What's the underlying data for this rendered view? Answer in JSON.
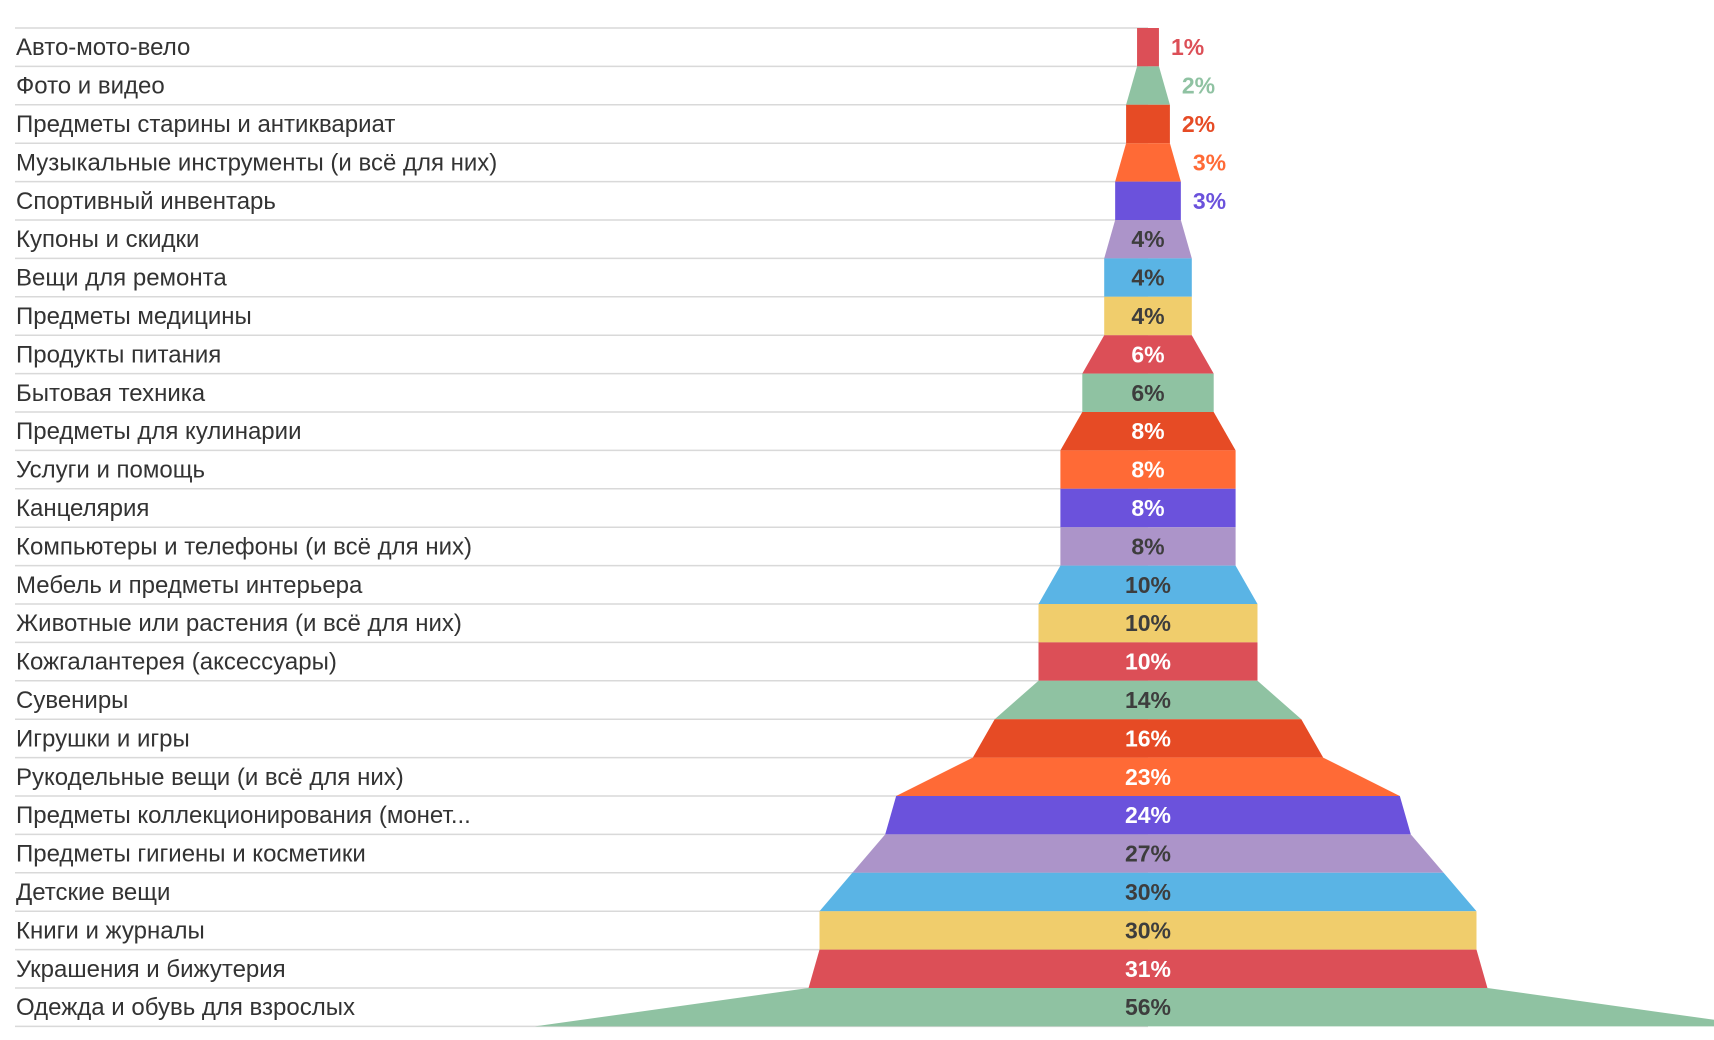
{
  "chart_data": {
    "type": "bar",
    "variant": "funnel",
    "title": "",
    "xlabel": "",
    "ylabel": "",
    "categories": [
      "Авто-мото-вело",
      "Фото и видео",
      "Предметы старины и антиквариат",
      "Музыкальные инструменты (и всё для них)",
      "Спортивный инвентарь",
      "Купоны и скидки",
      "Вещи для ремонта",
      "Предметы медицины",
      "Продукты питания",
      "Бытовая техника",
      "Предметы для кулинарии",
      "Услуги и помощь",
      "Канцелярия",
      "Компьютеры и телефоны (и всё для них)",
      "Мебель и предметы интерьера",
      "Животные или растения (и всё для них)",
      "Кожгалантерея (аксессуары)",
      "Сувениры",
      "Игрушки и игры",
      "Рукодельные вещи (и всё для них)",
      "Предметы коллекционирования (монет...",
      "Предметы гигиены и косметики",
      "Детские вещи",
      "Книги и журналы",
      "Украшения и бижутерия",
      "Одежда и обувь для взрослых"
    ],
    "values": [
      1,
      2,
      2,
      3,
      3,
      4,
      4,
      4,
      6,
      6,
      8,
      8,
      8,
      8,
      10,
      10,
      10,
      14,
      16,
      23,
      24,
      27,
      30,
      30,
      31,
      56
    ],
    "value_labels": [
      "1%",
      "2%",
      "2%",
      "3%",
      "3%",
      "4%",
      "4%",
      "4%",
      "6%",
      "6%",
      "8%",
      "8%",
      "8%",
      "8%",
      "10%",
      "10%",
      "10%",
      "14%",
      "16%",
      "23%",
      "24%",
      "27%",
      "30%",
      "30%",
      "31%",
      "56%"
    ],
    "colors": [
      "#dc4f57",
      "#8fc2a2",
      "#e64b25",
      "#ff6a36",
      "#6b52dc",
      "#ac94c9",
      "#5ab4e5",
      "#f0cd6c"
    ],
    "label_dark_color": "#3d3d3d",
    "label_light_color": "#ffffff",
    "grid": true,
    "legend": "none"
  }
}
